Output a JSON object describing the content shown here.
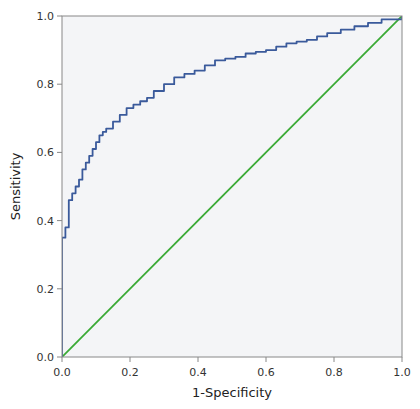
{
  "chart_data": {
    "type": "line",
    "xlabel": "1-Specificity",
    "ylabel": "Sensitivity",
    "xlim": [
      0.0,
      1.0
    ],
    "ylim": [
      0.0,
      1.0
    ],
    "xticks": [
      {
        "value": 0.0,
        "label": "0.0"
      },
      0.2,
      0.4,
      0.6,
      0.8,
      {
        "value": 1.0,
        "label": "1.0"
      }
    ],
    "yticks": [
      {
        "value": 0.0,
        "label": "0.0"
      },
      0.2,
      0.4,
      0.6,
      0.8,
      {
        "value": 1.0,
        "label": "1.0"
      }
    ],
    "grid": false,
    "series": [
      {
        "color": "#3aaa35",
        "x": [
          0,
          1
        ],
        "values": [
          0,
          1
        ]
      },
      {
        "color": "#3a5a9b",
        "x": [
          0.0,
          0.0,
          0.0,
          0.01,
          0.01,
          0.02,
          0.02,
          0.02,
          0.03,
          0.03,
          0.04,
          0.04,
          0.05,
          0.05,
          0.06,
          0.06,
          0.07,
          0.07,
          0.08,
          0.08,
          0.09,
          0.09,
          0.1,
          0.1,
          0.11,
          0.11,
          0.12,
          0.12,
          0.13,
          0.13,
          0.15,
          0.15,
          0.17,
          0.17,
          0.19,
          0.19,
          0.21,
          0.21,
          0.23,
          0.23,
          0.25,
          0.25,
          0.27,
          0.27,
          0.3,
          0.3,
          0.33,
          0.33,
          0.36,
          0.36,
          0.39,
          0.39,
          0.42,
          0.42,
          0.45,
          0.45,
          0.48,
          0.48,
          0.51,
          0.51,
          0.54,
          0.54,
          0.57,
          0.57,
          0.6,
          0.6,
          0.63,
          0.63,
          0.66,
          0.66,
          0.69,
          0.69,
          0.72,
          0.72,
          0.75,
          0.75,
          0.78,
          0.78,
          0.82,
          0.82,
          0.86,
          0.86,
          0.9,
          0.9,
          0.94,
          0.94,
          1.0,
          1.0
        ],
        "values": [
          0.0,
          0.22,
          0.35,
          0.35,
          0.38,
          0.38,
          0.44,
          0.46,
          0.46,
          0.48,
          0.48,
          0.5,
          0.5,
          0.52,
          0.52,
          0.55,
          0.55,
          0.57,
          0.57,
          0.59,
          0.59,
          0.61,
          0.61,
          0.63,
          0.63,
          0.65,
          0.65,
          0.66,
          0.66,
          0.67,
          0.67,
          0.69,
          0.69,
          0.71,
          0.71,
          0.73,
          0.73,
          0.74,
          0.74,
          0.75,
          0.75,
          0.76,
          0.76,
          0.78,
          0.78,
          0.8,
          0.8,
          0.82,
          0.82,
          0.83,
          0.83,
          0.84,
          0.84,
          0.855,
          0.855,
          0.87,
          0.87,
          0.875,
          0.875,
          0.88,
          0.88,
          0.89,
          0.89,
          0.895,
          0.895,
          0.9,
          0.9,
          0.91,
          0.91,
          0.92,
          0.92,
          0.925,
          0.925,
          0.93,
          0.93,
          0.94,
          0.94,
          0.95,
          0.95,
          0.96,
          0.96,
          0.97,
          0.97,
          0.98,
          0.98,
          0.99,
          0.99,
          1.0
        ]
      }
    ]
  }
}
